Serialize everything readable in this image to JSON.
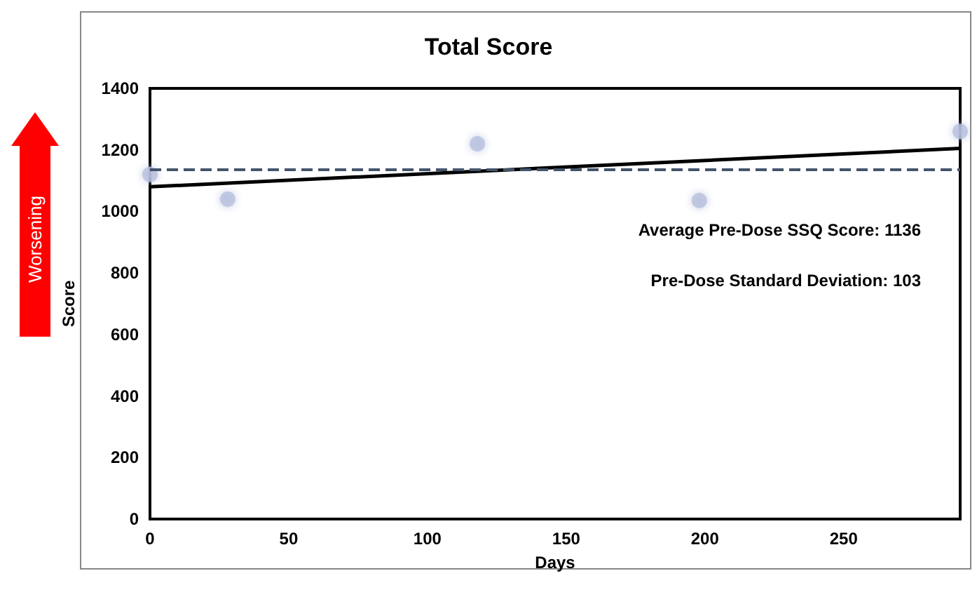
{
  "chart_data": {
    "type": "scatter",
    "title": "Total Score",
    "xlabel": "Days",
    "ylabel": "Score",
    "annotations": [
      "Worsening",
      "Average Pre-Dose SSQ Score: 1136",
      "Pre-Dose Standard Deviation: 103"
    ],
    "series": [
      {
        "color": "#b8c0de",
        "marker": "circle",
        "x": [
          0,
          28,
          118,
          198,
          292
        ],
        "values": [
          1120,
          1040,
          1220,
          1035,
          1260
        ]
      },
      {
        "type": "line",
        "color": "#000000",
        "marker": "none",
        "line_style": "solid",
        "x": [
          0,
          292
        ],
        "values": [
          1080,
          1205
        ]
      }
    ],
    "ref_lines": [
      {
        "axis": "y",
        "value": 1136,
        "color": "#44546a",
        "line_style": "dashed"
      }
    ],
    "xlim": [
      0,
      292
    ],
    "xticks": [
      0,
      50,
      100,
      150,
      200,
      250
    ],
    "ylim": [
      0,
      1400
    ],
    "yticks": [
      0,
      200,
      400,
      600,
      800,
      1000,
      1200,
      1400
    ],
    "grid": false
  }
}
